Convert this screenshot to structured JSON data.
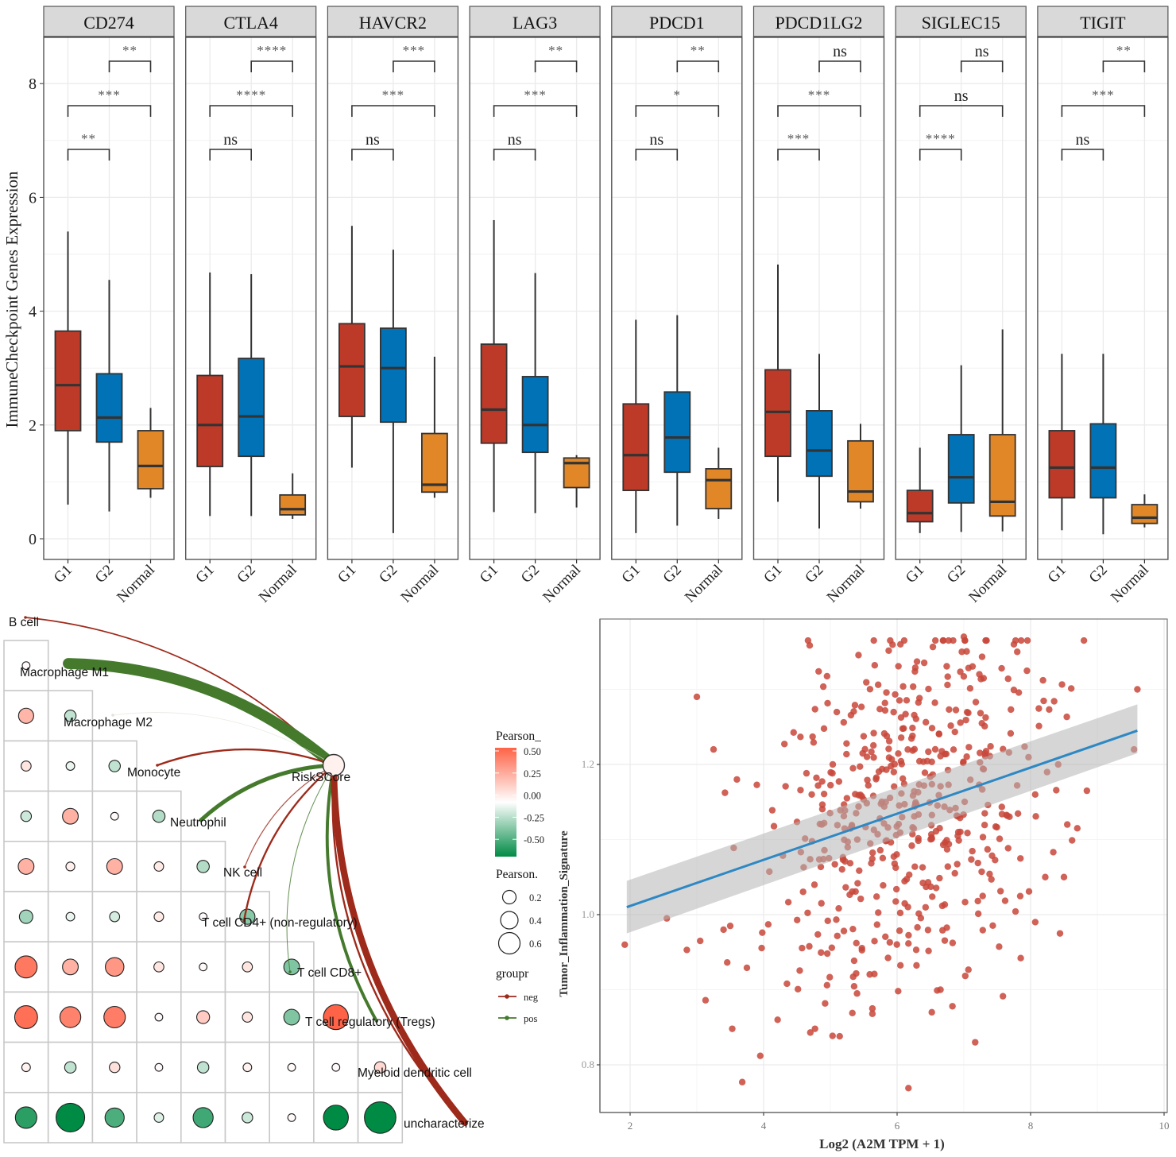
{
  "chart_data": [
    {
      "type": "box",
      "title": "",
      "ylabel": "ImmuneCheckpoint Genes Expression",
      "xlabel": "",
      "ylim": [
        -0.4,
        8.9
      ],
      "yticks": [
        0,
        2,
        4,
        6,
        8
      ],
      "grid": true,
      "groups": [
        "G1",
        "G2",
        "Normal"
      ],
      "group_colors": {
        "G1": "#BE3A28",
        "G2": "#0072B5",
        "Normal": "#E18727"
      },
      "facets": [
        {
          "gene": "CD274",
          "boxes": [
            {
              "group": "G1",
              "min": 0.6,
              "q1": 1.9,
              "median": 2.7,
              "q3": 3.65,
              "max": 5.4
            },
            {
              "group": "G2",
              "min": 0.48,
              "q1": 1.7,
              "median": 2.13,
              "q3": 2.9,
              "max": 4.55
            },
            {
              "group": "Normal",
              "min": 0.72,
              "q1": 0.88,
              "median": 1.28,
              "q3": 1.9,
              "max": 2.3
            }
          ],
          "comparisons": [
            {
              "pair": [
                "G1",
                "G2"
              ],
              "label": "**"
            },
            {
              "pair": [
                "G1",
                "Normal"
              ],
              "label": "***"
            },
            {
              "pair": [
                "G2",
                "Normal"
              ],
              "label": "**"
            }
          ]
        },
        {
          "gene": "CTLA4",
          "boxes": [
            {
              "group": "G1",
              "min": 0.4,
              "q1": 1.27,
              "median": 2.0,
              "q3": 2.87,
              "max": 4.68
            },
            {
              "group": "G2",
              "min": 0.4,
              "q1": 1.45,
              "median": 2.15,
              "q3": 3.17,
              "max": 4.65
            },
            {
              "group": "Normal",
              "min": 0.35,
              "q1": 0.42,
              "median": 0.52,
              "q3": 0.77,
              "max": 1.15
            }
          ],
          "comparisons": [
            {
              "pair": [
                "G1",
                "G2"
              ],
              "label": "ns"
            },
            {
              "pair": [
                "G1",
                "Normal"
              ],
              "label": "****"
            },
            {
              "pair": [
                "G2",
                "Normal"
              ],
              "label": "****"
            }
          ]
        },
        {
          "gene": "HAVCR2",
          "boxes": [
            {
              "group": "G1",
              "min": 1.25,
              "q1": 2.15,
              "median": 3.03,
              "q3": 3.78,
              "max": 5.5
            },
            {
              "group": "G2",
              "min": 0.1,
              "q1": 2.05,
              "median": 3.0,
              "q3": 3.7,
              "max": 5.08
            },
            {
              "group": "Normal",
              "min": 0.72,
              "q1": 0.82,
              "median": 0.95,
              "q3": 1.85,
              "max": 3.2
            }
          ],
          "comparisons": [
            {
              "pair": [
                "G1",
                "G2"
              ],
              "label": "ns"
            },
            {
              "pair": [
                "G1",
                "Normal"
              ],
              "label": "***"
            },
            {
              "pair": [
                "G2",
                "Normal"
              ],
              "label": "***"
            }
          ]
        },
        {
          "gene": "LAG3",
          "boxes": [
            {
              "group": "G1",
              "min": 0.47,
              "q1": 1.68,
              "median": 2.27,
              "q3": 3.42,
              "max": 5.6
            },
            {
              "group": "G2",
              "min": 0.45,
              "q1": 1.52,
              "median": 2.0,
              "q3": 2.85,
              "max": 4.67
            },
            {
              "group": "Normal",
              "min": 0.55,
              "q1": 0.9,
              "median": 1.33,
              "q3": 1.42,
              "max": 1.47
            }
          ],
          "comparisons": [
            {
              "pair": [
                "G1",
                "G2"
              ],
              "label": "ns"
            },
            {
              "pair": [
                "G1",
                "Normal"
              ],
              "label": "***"
            },
            {
              "pair": [
                "G2",
                "Normal"
              ],
              "label": "**"
            }
          ]
        },
        {
          "gene": "PDCD1",
          "boxes": [
            {
              "group": "G1",
              "min": 0.1,
              "q1": 0.85,
              "median": 1.47,
              "q3": 2.37,
              "max": 3.85
            },
            {
              "group": "G2",
              "min": 0.23,
              "q1": 1.17,
              "median": 1.78,
              "q3": 2.58,
              "max": 3.93
            },
            {
              "group": "Normal",
              "min": 0.35,
              "q1": 0.53,
              "median": 1.03,
              "q3": 1.23,
              "max": 1.6
            }
          ],
          "comparisons": [
            {
              "pair": [
                "G1",
                "G2"
              ],
              "label": "ns"
            },
            {
              "pair": [
                "G1",
                "Normal"
              ],
              "label": "*"
            },
            {
              "pair": [
                "G2",
                "Normal"
              ],
              "label": "**"
            }
          ]
        },
        {
          "gene": "PDCD1LG2",
          "boxes": [
            {
              "group": "G1",
              "min": 0.65,
              "q1": 1.45,
              "median": 2.23,
              "q3": 2.97,
              "max": 4.82
            },
            {
              "group": "G2",
              "min": 0.18,
              "q1": 1.1,
              "median": 1.55,
              "q3": 2.25,
              "max": 3.25
            },
            {
              "group": "Normal",
              "min": 0.53,
              "q1": 0.65,
              "median": 0.83,
              "q3": 1.72,
              "max": 2.02
            }
          ],
          "comparisons": [
            {
              "pair": [
                "G1",
                "G2"
              ],
              "label": "***"
            },
            {
              "pair": [
                "G1",
                "Normal"
              ],
              "label": "***"
            },
            {
              "pair": [
                "G2",
                "Normal"
              ],
              "label": "ns"
            }
          ]
        },
        {
          "gene": "SIGLEC15",
          "boxes": [
            {
              "group": "G1",
              "min": 0.1,
              "q1": 0.3,
              "median": 0.45,
              "q3": 0.85,
              "max": 1.6
            },
            {
              "group": "G2",
              "min": 0.12,
              "q1": 0.63,
              "median": 1.08,
              "q3": 1.83,
              "max": 3.05
            },
            {
              "group": "Normal",
              "min": 0.13,
              "q1": 0.4,
              "median": 0.65,
              "q3": 1.83,
              "max": 3.68
            }
          ],
          "comparisons": [
            {
              "pair": [
                "G1",
                "G2"
              ],
              "label": "****"
            },
            {
              "pair": [
                "G1",
                "Normal"
              ],
              "label": "ns"
            },
            {
              "pair": [
                "G2",
                "Normal"
              ],
              "label": "ns"
            }
          ]
        },
        {
          "gene": "TIGIT",
          "boxes": [
            {
              "group": "G1",
              "min": 0.15,
              "q1": 0.72,
              "median": 1.25,
              "q3": 1.9,
              "max": 3.25
            },
            {
              "group": "G2",
              "min": 0.08,
              "q1": 0.72,
              "median": 1.25,
              "q3": 2.02,
              "max": 3.25
            },
            {
              "group": "Normal",
              "min": 0.2,
              "q1": 0.27,
              "median": 0.37,
              "q3": 0.6,
              "max": 0.78
            }
          ],
          "comparisons": [
            {
              "pair": [
                "G1",
                "G2"
              ],
              "label": "ns"
            },
            {
              "pair": [
                "G1",
                "Normal"
              ],
              "label": "***"
            },
            {
              "pair": [
                "G2",
                "Normal"
              ],
              "label": "**"
            }
          ]
        }
      ]
    },
    {
      "type": "heatmap",
      "title": "",
      "variables": [
        "B cell",
        "Macrophage M1",
        "Macrophage M2",
        "Monocyte",
        "Neutrophil",
        "NK cell",
        "T cell CD4+ (non-regulatory)",
        "T cell CD8+",
        "T cell regulatory (Tregs)",
        "Myeloid dendritic cell",
        "uncharacterize"
      ],
      "center_node": "RiskSCore",
      "correlation_lower_triangle": [
        [
          0.02
        ],
        [
          0.28,
          -0.15
        ],
        [
          0.1,
          -0.05,
          -0.15
        ],
        [
          -0.12,
          0.3,
          0.02,
          -0.18
        ],
        [
          0.3,
          0.06,
          0.3,
          0.08,
          -0.18
        ],
        [
          -0.22,
          -0.05,
          -0.1,
          0.08,
          0.02,
          -0.28
        ],
        [
          0.52,
          0.3,
          0.4,
          0.1,
          0.02,
          0.1,
          -0.3
        ],
        [
          0.55,
          0.48,
          0.5,
          0.02,
          0.2,
          0.1,
          -0.3,
          0.62
        ],
        [
          0.05,
          -0.15,
          0.12,
          0.02,
          -0.15,
          0.05,
          0.02,
          0.02,
          0.15
        ],
        [
          -0.5,
          -0.75,
          -0.42,
          -0.08,
          -0.45,
          -0.12,
          0.02,
          -0.62,
          -0.85
        ]
      ],
      "edges": [
        {
          "target": "B cell",
          "group": "neg",
          "strength": 0.05
        },
        {
          "target": "Macrophage M1",
          "group": "pos",
          "strength": 0.6
        },
        {
          "target": "Macrophage M2",
          "group": "pos",
          "strength": 0.01
        },
        {
          "target": "Monocyte",
          "group": "neg",
          "strength": 0.08
        },
        {
          "target": "Neutrophil",
          "group": "pos",
          "strength": 0.2
        },
        {
          "target": "NK cell",
          "group": "neg",
          "strength": 0.03
        },
        {
          "target": "T cell CD4+ (non-regulatory)",
          "group": "neg",
          "strength": 0.08
        },
        {
          "target": "T cell CD8+",
          "group": "pos",
          "strength": 0.02
        },
        {
          "target": "T cell regulatory (Tregs)",
          "group": "pos",
          "strength": 0.15
        },
        {
          "target": "Myeloid dendritic cell",
          "group": "neg",
          "strength": 0.08
        },
        {
          "target": "uncharacterize",
          "group": "neg",
          "strength": 0.35
        }
      ],
      "legend": {
        "color_title": "Pearson_",
        "color_ticks": [
          "0.50",
          "0.25",
          "0.00",
          "-0.25",
          "-0.50"
        ],
        "color_high": "#FF6347",
        "color_mid": "#FFFFFF",
        "color_low": "#008B45",
        "size_title": "Pearson.",
        "size_ticks": [
          "0.2",
          "0.4",
          "0.6"
        ],
        "group_title": "groupr",
        "groups": [
          {
            "label": "neg",
            "color": "#9E2A1B"
          },
          {
            "label": "pos",
            "color": "#457A2D"
          }
        ]
      }
    },
    {
      "type": "scatter",
      "title": "",
      "xlabel": "Log2 (A2M TPM + 1)",
      "ylabel": "Tumor_Inflammation_Signature",
      "xlim": [
        1.55,
        10.0
      ],
      "ylim": [
        0.735,
        1.395
      ],
      "xticks": [
        2,
        4,
        6,
        8,
        10
      ],
      "yticks": [
        0.8,
        1.0,
        1.2
      ],
      "grid": true,
      "point_color": "#C8473A",
      "fit": {
        "x0": 1.95,
        "y0": 1.01,
        "x1": 9.6,
        "y1": 1.245,
        "ci_lo": [
          0.975,
          1.215
        ],
        "ci_hi": [
          1.045,
          1.28
        ],
        "color": "#2D88C4"
      },
      "highlight_points": [
        [
          1.92,
          0.96
        ],
        [
          2.55,
          0.995
        ],
        [
          2.85,
          0.953
        ],
        [
          3.05,
          0.965
        ],
        [
          3.13,
          0.886
        ],
        [
          3.4,
          0.98
        ],
        [
          3.5,
          0.985
        ],
        [
          3.53,
          0.848
        ],
        [
          3.68,
          0.777
        ],
        [
          3.95,
          0.812
        ],
        [
          3.98,
          0.976
        ],
        [
          4.07,
          0.987
        ],
        [
          4.21,
          0.86
        ],
        [
          4.35,
          0.908
        ],
        [
          4.6,
          1.063
        ],
        [
          4.7,
          0.843
        ],
        [
          4.77,
          0.848
        ],
        [
          4.95,
          0.906
        ],
        [
          5.33,
          0.869
        ],
        [
          5.4,
          0.895
        ],
        [
          5.63,
          0.868
        ],
        [
          5.63,
          0.875
        ],
        [
          6.17,
          0.769
        ],
        [
          6.52,
          0.87
        ],
        [
          6.6,
          0.899
        ],
        [
          6.65,
          0.9
        ],
        [
          7.17,
          0.83
        ],
        [
          3.0,
          1.29
        ],
        [
          3.25,
          1.22
        ],
        [
          3.6,
          1.18
        ],
        [
          9.6,
          1.3
        ],
        [
          9.55,
          1.22
        ],
        [
          8.7,
          1.115
        ],
        [
          8.55,
          1.12
        ],
        [
          8.5,
          1.05
        ],
        [
          8.22,
          1.05
        ],
        [
          8.07,
          0.99
        ],
        [
          7.8,
          1.35
        ],
        [
          7.75,
          1.36
        ],
        [
          7.0,
          1.37
        ],
        [
          6.05,
          1.36
        ],
        [
          6.97,
          1.35
        ]
      ],
      "n_points_approx": 520,
      "cloud_center": [
        6.2,
        1.13
      ],
      "cloud_spread": [
        1.05,
        0.115
      ]
    }
  ]
}
